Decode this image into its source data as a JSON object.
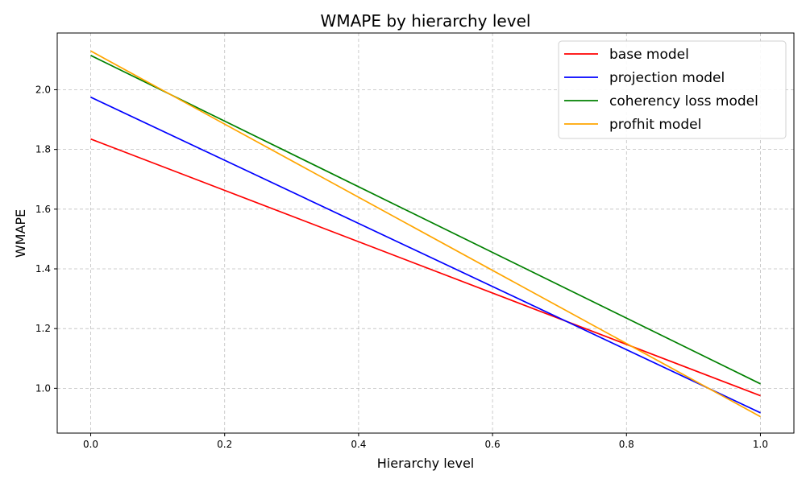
{
  "chart_data": {
    "type": "line",
    "title": "WMAPE by hierarchy level",
    "xlabel": "Hierarchy level",
    "ylabel": "WMAPE",
    "xlim": [
      -0.05,
      1.05
    ],
    "ylim": [
      0.85,
      2.19
    ],
    "xticks": [
      0.0,
      0.2,
      0.4,
      0.6,
      0.8,
      1.0
    ],
    "xtick_labels": [
      "0.0",
      "0.2",
      "0.4",
      "0.6",
      "0.8",
      "1.0"
    ],
    "yticks": [
      1.0,
      1.2,
      1.4,
      1.6,
      1.8,
      2.0
    ],
    "ytick_labels": [
      "1.0",
      "1.2",
      "1.4",
      "1.6",
      "1.8",
      "2.0"
    ],
    "grid": true,
    "legend_position": "top-right",
    "series": [
      {
        "name": "base model",
        "color": "#ff0000",
        "x": [
          0.0,
          1.0
        ],
        "y": [
          1.835,
          0.975
        ]
      },
      {
        "name": "projection model",
        "color": "#0000ff",
        "x": [
          0.0,
          1.0
        ],
        "y": [
          1.975,
          0.918
        ]
      },
      {
        "name": "coherency loss model",
        "color": "#008000",
        "x": [
          0.0,
          1.0
        ],
        "y": [
          2.115,
          1.015
        ]
      },
      {
        "name": "profhit model",
        "color": "#ffa500",
        "x": [
          0.0,
          1.0
        ],
        "y": [
          2.13,
          0.905
        ]
      }
    ]
  }
}
